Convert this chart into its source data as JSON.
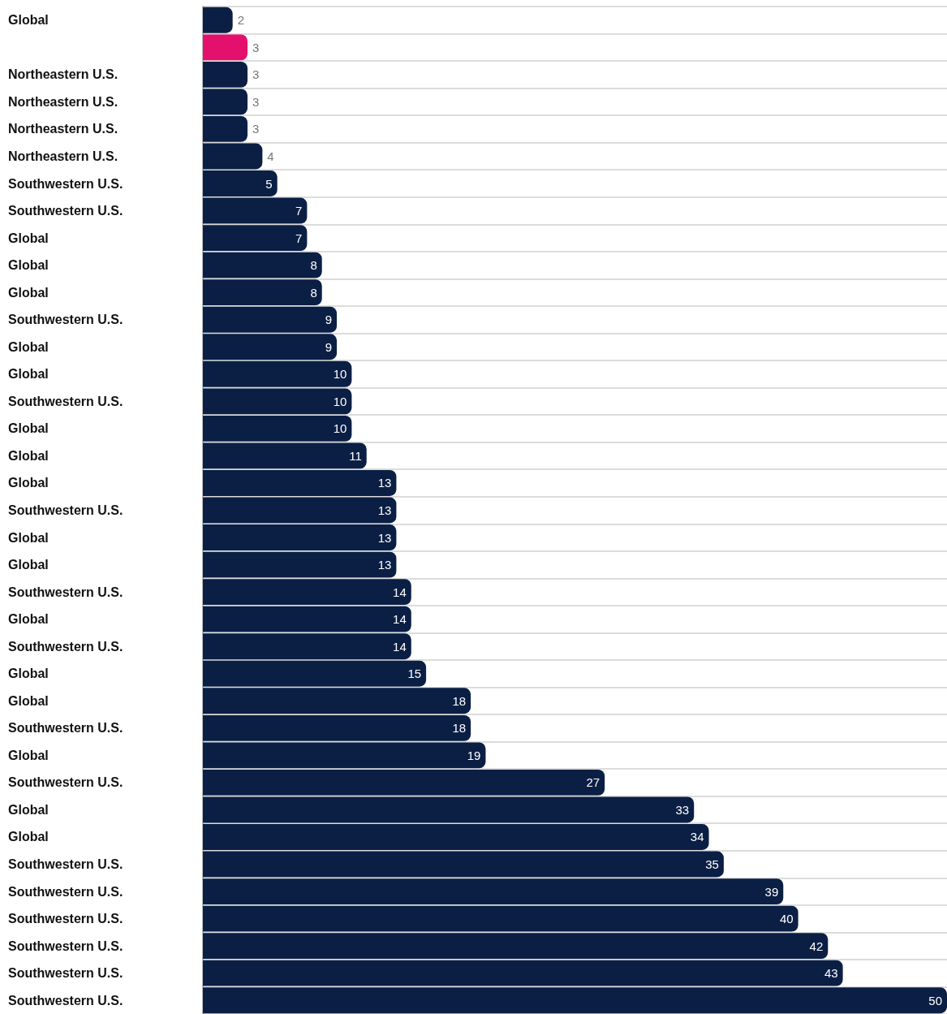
{
  "chart_data": {
    "type": "bar",
    "orientation": "horizontal",
    "data_labels": true,
    "grid": "y",
    "categories": [
      "Global",
      null,
      "Northeastern U.S.",
      "Northeastern U.S.",
      "Northeastern U.S.",
      "Northeastern U.S.",
      "Southwestern U.S.",
      "Southwestern U.S.",
      "Global",
      "Global",
      "Global",
      "Southwestern U.S.",
      "Global",
      "Global",
      "Southwestern U.S.",
      "Global",
      "Global",
      "Global",
      "Southwestern U.S.",
      "Global",
      "Global",
      "Southwestern U.S.",
      "Global",
      "Southwestern U.S.",
      "Global",
      "Global",
      "Southwestern U.S.",
      "Global",
      "Southwestern U.S.",
      "Global",
      "Global",
      "Southwestern U.S.",
      "Southwestern U.S.",
      "Southwestern U.S.",
      "Southwestern U.S.",
      "Southwestern U.S.",
      "Southwestern U.S."
    ],
    "values": [
      2,
      3,
      3,
      3,
      3,
      4,
      5,
      7,
      7,
      8,
      8,
      9,
      9,
      10,
      10,
      10,
      11,
      13,
      13,
      13,
      13,
      14,
      14,
      14,
      15,
      18,
      18,
      19,
      27,
      33,
      34,
      35,
      39,
      40,
      42,
      43,
      50
    ],
    "colors": [
      "#0b1f45",
      "#e4106e",
      "#0b1f45",
      "#0b1f45",
      "#0b1f45",
      "#0b1f45",
      "#0b1f45",
      "#0b1f45",
      "#0b1f45",
      "#0b1f45",
      "#0b1f45",
      "#0b1f45",
      "#0b1f45",
      "#0b1f45",
      "#0b1f45",
      "#0b1f45",
      "#0b1f45",
      "#0b1f45",
      "#0b1f45",
      "#0b1f45",
      "#0b1f45",
      "#0b1f45",
      "#0b1f45",
      "#0b1f45",
      "#0b1f45",
      "#0b1f45",
      "#0b1f45",
      "#0b1f45",
      "#0b1f45",
      "#0b1f45",
      "#0b1f45",
      "#0b1f45",
      "#0b1f45",
      "#0b1f45",
      "#0b1f45",
      "#0b1f45",
      "#0b1f45"
    ]
  }
}
